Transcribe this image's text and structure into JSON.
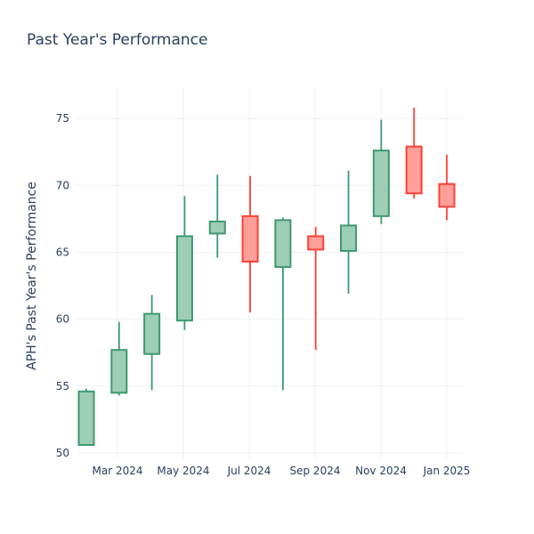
{
  "chart_data": {
    "type": "candlestick",
    "title": "Past Year's Performance",
    "xlabel": "",
    "ylabel": "APH's Past Year's Performance",
    "ylim": [
      49.6,
      77.2
    ],
    "y_ticks": [
      50,
      55,
      60,
      65,
      70,
      75
    ],
    "x_tick_labels": [
      "Mar 2024",
      "May 2024",
      "Jul 2024",
      "Sep 2024",
      "Nov 2024",
      "Jan 2025"
    ],
    "grid": true,
    "legend": false,
    "colors": {
      "increasing_line": "#3d9970",
      "increasing_fill": "#9ecfb6",
      "decreasing_line": "#ff4136",
      "decreasing_fill": "#ff9f9a",
      "grid": "#eef1f6",
      "text": "#2a3f5f"
    },
    "candles": [
      {
        "x": "2024-01",
        "open": 50.6,
        "high": 54.8,
        "low": 50.6,
        "close": 54.6
      },
      {
        "x": "2024-02",
        "open": 54.5,
        "high": 59.8,
        "low": 54.3,
        "close": 57.7
      },
      {
        "x": "2024-03",
        "open": 57.4,
        "high": 61.8,
        "low": 54.7,
        "close": 60.4
      },
      {
        "x": "2024-04",
        "open": 59.9,
        "high": 69.2,
        "low": 59.2,
        "close": 66.2
      },
      {
        "x": "2024-05",
        "open": 66.4,
        "high": 70.8,
        "low": 64.6,
        "close": 67.3
      },
      {
        "x": "2024-06",
        "open": 67.7,
        "high": 70.7,
        "low": 60.5,
        "close": 64.3
      },
      {
        "x": "2024-07",
        "open": 63.9,
        "high": 67.6,
        "low": 54.7,
        "close": 67.4
      },
      {
        "x": "2024-08",
        "open": 66.2,
        "high": 66.9,
        "low": 57.7,
        "close": 65.2
      },
      {
        "x": "2024-09",
        "open": 65.1,
        "high": 71.1,
        "low": 61.9,
        "close": 67.0
      },
      {
        "x": "2024-10",
        "open": 67.7,
        "high": 74.9,
        "low": 67.1,
        "close": 72.6
      },
      {
        "x": "2024-11",
        "open": 72.9,
        "high": 75.8,
        "low": 69.0,
        "close": 69.4
      },
      {
        "x": "2024-12",
        "open": 70.1,
        "high": 72.3,
        "low": 67.4,
        "close": 68.4
      }
    ]
  }
}
